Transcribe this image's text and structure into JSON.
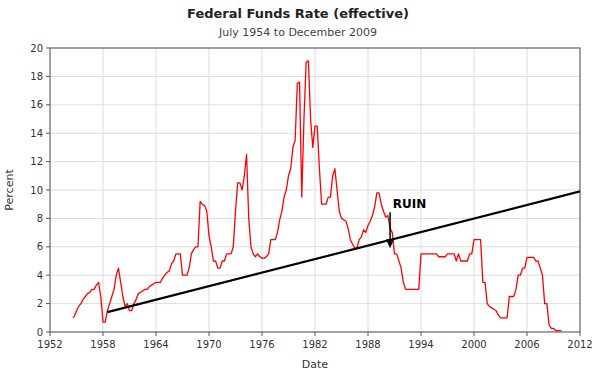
{
  "chart_data": {
    "type": "line",
    "title": "Federal Funds Rate (effective)",
    "subtitle": "July 1954 to December 2009",
    "x_label": "Date",
    "y_label": "Percent",
    "xlim": [
      1952,
      2012
    ],
    "ylim": [
      0,
      20
    ],
    "xticks": [
      1952,
      1958,
      1964,
      1970,
      1976,
      1982,
      1988,
      1994,
      2000,
      2006,
      2012
    ],
    "yticks": [
      0,
      2,
      4,
      6,
      8,
      10,
      12,
      14,
      16,
      18,
      20
    ],
    "grid": true,
    "x": [
      1954.58,
      1954.75,
      1955.0,
      1955.25,
      1955.5,
      1955.75,
      1956.0,
      1956.25,
      1956.5,
      1956.75,
      1957.0,
      1957.25,
      1957.5,
      1957.75,
      1958.0,
      1958.25,
      1958.5,
      1958.75,
      1959.0,
      1959.25,
      1959.5,
      1959.75,
      1960.0,
      1960.25,
      1960.5,
      1960.75,
      1961.0,
      1961.25,
      1961.5,
      1961.75,
      1962.0,
      1962.25,
      1962.5,
      1962.75,
      1963.0,
      1963.25,
      1963.5,
      1963.75,
      1964.0,
      1964.25,
      1964.5,
      1964.75,
      1965.0,
      1965.25,
      1965.5,
      1965.75,
      1966.0,
      1966.25,
      1966.5,
      1966.75,
      1967.0,
      1967.25,
      1967.5,
      1967.75,
      1968.0,
      1968.25,
      1968.5,
      1968.75,
      1969.0,
      1969.25,
      1969.5,
      1969.75,
      1970.0,
      1970.25,
      1970.5,
      1970.75,
      1971.0,
      1971.25,
      1971.5,
      1971.75,
      1972.0,
      1972.25,
      1972.5,
      1972.75,
      1973.0,
      1973.25,
      1973.5,
      1973.75,
      1974.0,
      1974.25,
      1974.5,
      1974.75,
      1975.0,
      1975.25,
      1975.5,
      1975.75,
      1976.0,
      1976.25,
      1976.5,
      1976.75,
      1977.0,
      1977.25,
      1977.5,
      1977.75,
      1978.0,
      1978.25,
      1978.5,
      1978.75,
      1979.0,
      1979.25,
      1979.5,
      1979.75,
      1980.0,
      1980.25,
      1980.5,
      1980.75,
      1981.0,
      1981.25,
      1981.5,
      1981.75,
      1982.0,
      1982.25,
      1982.5,
      1982.75,
      1983.0,
      1983.25,
      1983.5,
      1983.75,
      1984.0,
      1984.25,
      1984.5,
      1984.75,
      1985.0,
      1985.25,
      1985.5,
      1985.75,
      1986.0,
      1986.25,
      1986.5,
      1986.75,
      1987.0,
      1987.25,
      1987.5,
      1987.75,
      1988.0,
      1988.25,
      1988.5,
      1988.75,
      1989.0,
      1989.25,
      1989.5,
      1989.75,
      1990.0,
      1990.25,
      1990.5,
      1990.75,
      1991.0,
      1991.25,
      1991.5,
      1991.75,
      1992.0,
      1992.25,
      1992.5,
      1992.75,
      1993.0,
      1993.25,
      1993.5,
      1993.75,
      1994.0,
      1994.25,
      1994.5,
      1994.75,
      1995.0,
      1995.25,
      1995.5,
      1995.75,
      1996.0,
      1996.25,
      1996.5,
      1996.75,
      1997.0,
      1997.25,
      1997.5,
      1997.75,
      1998.0,
      1998.25,
      1998.5,
      1998.75,
      1999.0,
      1999.25,
      1999.5,
      1999.75,
      2000.0,
      2000.25,
      2000.5,
      2000.75,
      2001.0,
      2001.25,
      2001.5,
      2001.75,
      2002.0,
      2002.25,
      2002.5,
      2002.75,
      2003.0,
      2003.25,
      2003.5,
      2003.75,
      2004.0,
      2004.25,
      2004.5,
      2004.75,
      2005.0,
      2005.25,
      2005.5,
      2005.75,
      2006.0,
      2006.25,
      2006.5,
      2006.75,
      2007.0,
      2007.25,
      2007.5,
      2007.75,
      2008.0,
      2008.25,
      2008.5,
      2008.75,
      2009.0,
      2009.25,
      2009.5,
      2009.75,
      2009.9
    ],
    "series": [
      {
        "color": "#ff0000",
        "values": [
          1.0,
          1.1,
          1.5,
          1.8,
          2.0,
          2.3,
          2.5,
          2.7,
          2.8,
          3.0,
          3.0,
          3.3,
          3.5,
          2.5,
          0.7,
          0.7,
          1.5,
          2.0,
          2.5,
          3.0,
          4.0,
          4.5,
          3.5,
          2.5,
          1.8,
          2.0,
          1.5,
          1.5,
          2.0,
          2.3,
          2.7,
          2.8,
          2.9,
          3.0,
          3.0,
          3.2,
          3.3,
          3.4,
          3.5,
          3.5,
          3.5,
          3.8,
          4.0,
          4.2,
          4.3,
          4.8,
          5.0,
          5.5,
          5.5,
          5.5,
          4.0,
          4.0,
          4.0,
          4.5,
          5.5,
          5.8,
          6.0,
          6.0,
          9.2,
          9.0,
          8.9,
          8.5,
          6.8,
          6.0,
          5.0,
          5.0,
          4.5,
          4.5,
          5.0,
          5.0,
          5.5,
          5.5,
          5.5,
          6.0,
          8.5,
          10.5,
          10.5,
          10.0,
          11.0,
          12.5,
          8.0,
          6.0,
          5.5,
          5.3,
          5.5,
          5.3,
          5.2,
          5.2,
          5.3,
          5.5,
          6.5,
          6.5,
          6.5,
          7.0,
          7.9,
          8.5,
          9.5,
          10.0,
          11.0,
          11.5,
          13.0,
          13.5,
          17.5,
          17.6,
          9.5,
          15.0,
          19.0,
          19.1,
          15.0,
          13.0,
          14.5,
          14.5,
          11.5,
          9.0,
          9.0,
          9.0,
          9.5,
          9.5,
          11.0,
          11.5,
          10.0,
          8.5,
          8.0,
          7.9,
          7.8,
          7.3,
          6.5,
          6.2,
          5.9,
          5.9,
          6.5,
          6.7,
          7.2,
          7.0,
          7.5,
          7.8,
          8.2,
          8.8,
          9.8,
          9.8,
          9.0,
          8.5,
          8.1,
          8.2,
          7.3,
          7.0,
          5.5,
          5.5,
          5.0,
          4.5,
          3.5,
          3.0,
          3.0,
          3.0,
          3.0,
          3.0,
          3.0,
          3.0,
          5.5,
          5.5,
          5.5,
          5.5,
          5.5,
          5.5,
          5.5,
          5.5,
          5.3,
          5.3,
          5.3,
          5.3,
          5.5,
          5.5,
          5.5,
          5.5,
          5.0,
          5.5,
          5.0,
          5.0,
          5.0,
          5.0,
          5.5,
          5.5,
          6.5,
          6.5,
          6.5,
          6.5,
          3.5,
          3.5,
          2.0,
          1.8,
          1.7,
          1.6,
          1.5,
          1.2,
          1.0,
          1.0,
          1.0,
          1.0,
          2.5,
          2.5,
          2.5,
          3.0,
          4.0,
          4.0,
          4.5,
          4.5,
          5.25,
          5.25,
          5.25,
          5.25,
          5.0,
          5.0,
          4.5,
          4.0,
          2.0,
          2.0,
          0.5,
          0.25,
          0.25,
          0.1,
          0.1,
          0.1,
          0.1
        ]
      },
      {
        "color": "#000000",
        "x": [
          1958.5,
          2012
        ],
        "values": [
          1.4,
          9.9
        ]
      }
    ],
    "annotations": [
      {
        "text": "RUIN",
        "x": 1990.8,
        "y": 8.5,
        "arrow_x": 1990.5,
        "arrow_y": 5.9
      }
    ]
  }
}
